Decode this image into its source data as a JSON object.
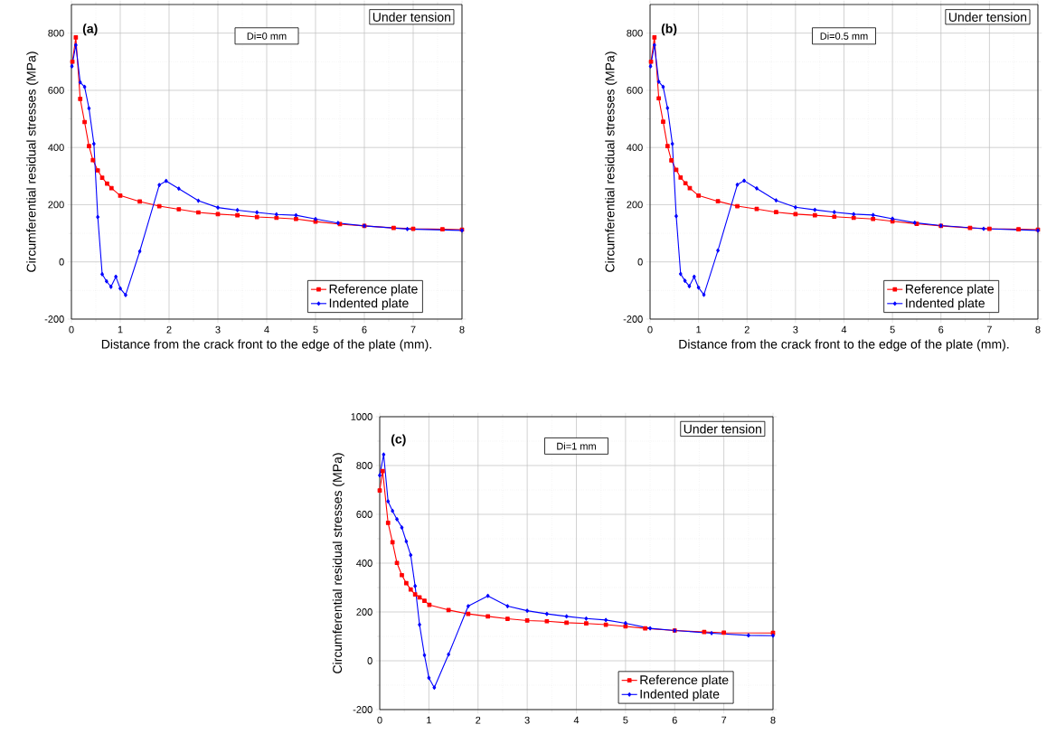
{
  "chart_data": [
    {
      "type": "line",
      "xlabel": "Distance from the crack front to the edge of the plate (mm).",
      "ylabel": "Circumferential residual stresses (MPa)",
      "annotations": [
        "(a)",
        "Under tension",
        "Di=0 mm"
      ],
      "xlim": [
        0,
        8
      ],
      "ylim": [
        -200,
        900
      ],
      "xticks": [
        0,
        1,
        2,
        3,
        4,
        5,
        6,
        7,
        8
      ],
      "yticks": [
        -200,
        0,
        200,
        400,
        600,
        800
      ],
      "grid": true,
      "legend": "bottom right",
      "line_style": "solid",
      "series": [
        {
          "name": "Reference plate",
          "color": "#ff0000",
          "marker": "square",
          "x": [
            0.02,
            0.09,
            0.18,
            0.27,
            0.36,
            0.44,
            0.54,
            0.63,
            0.73,
            0.82,
            1.0,
            1.4,
            1.8,
            2.2,
            2.6,
            3.0,
            3.4,
            3.8,
            4.2,
            4.6,
            5.0,
            5.5,
            6.0,
            6.6,
            7.0,
            7.6,
            8.0
          ],
          "values": [
            700,
            785,
            570,
            489,
            405,
            356,
            320,
            294,
            274,
            258,
            232,
            211,
            195,
            184,
            173,
            167,
            163,
            157,
            154,
            150,
            141,
            132,
            126,
            119,
            116,
            114,
            113
          ]
        },
        {
          "name": "Indented plate",
          "color": "#0000ff",
          "marker": "diamond",
          "x": [
            0.01,
            0.09,
            0.18,
            0.27,
            0.36,
            0.46,
            0.54,
            0.63,
            0.72,
            0.81,
            0.91,
            1.0,
            1.11,
            1.4,
            1.8,
            1.94,
            2.2,
            2.6,
            3.0,
            3.4,
            3.8,
            4.2,
            4.6,
            5.0,
            5.46,
            6.0,
            6.88,
            8.0
          ],
          "values": [
            684,
            758,
            628,
            612,
            537,
            413,
            157,
            -43,
            -68,
            -87,
            -52,
            -93,
            -116,
            37,
            269,
            283,
            256,
            214,
            190,
            181,
            173,
            166,
            163,
            150,
            136,
            126,
            115,
            110
          ]
        }
      ]
    },
    {
      "type": "line",
      "xlabel": "Distance from the crack front to the edge of the plate (mm).",
      "ylabel": "Circumferential residual stresses (MPa)",
      "annotations": [
        "(b)",
        "Under tension",
        "Di=0.5 mm"
      ],
      "xlim": [
        0,
        8
      ],
      "ylim": [
        -200,
        900
      ],
      "xticks": [
        0,
        1,
        2,
        3,
        4,
        5,
        6,
        7,
        8
      ],
      "yticks": [
        -200,
        0,
        200,
        400,
        600,
        800
      ],
      "grid": true,
      "legend": "bottom right",
      "line_style": "solid",
      "series": [
        {
          "name": "Reference plate",
          "color": "#ff0000",
          "marker": "square",
          "x": [
            0.02,
            0.09,
            0.18,
            0.27,
            0.36,
            0.44,
            0.54,
            0.63,
            0.73,
            0.82,
            1.0,
            1.4,
            1.8,
            2.2,
            2.6,
            3.0,
            3.4,
            3.8,
            4.2,
            4.6,
            5.0,
            5.5,
            6.0,
            6.6,
            7.0,
            7.6,
            8.0
          ],
          "values": [
            700,
            785,
            572,
            490,
            405,
            355,
            322,
            295,
            275,
            258,
            232,
            212,
            195,
            185,
            174,
            167,
            163,
            158,
            154,
            150,
            142,
            133,
            126,
            119,
            116,
            114,
            113
          ]
        },
        {
          "name": "Indented plate",
          "color": "#0000ff",
          "marker": "diamond",
          "x": [
            0.01,
            0.09,
            0.18,
            0.27,
            0.36,
            0.46,
            0.54,
            0.63,
            0.72,
            0.81,
            0.91,
            1.0,
            1.11,
            1.4,
            1.8,
            1.94,
            2.2,
            2.6,
            3.0,
            3.4,
            3.8,
            4.2,
            4.6,
            5.0,
            5.46,
            6.0,
            6.88,
            8.0
          ],
          "values": [
            684,
            758,
            630,
            612,
            538,
            413,
            160,
            -42,
            -66,
            -85,
            -52,
            -90,
            -115,
            40,
            270,
            284,
            257,
            215,
            191,
            182,
            174,
            167,
            164,
            151,
            137,
            127,
            116,
            110
          ]
        }
      ]
    },
    {
      "type": "line",
      "ylabel": "Circumferential residual stresses (MPa)",
      "annotations": [
        "(c)",
        "Under tension",
        "Di=1 mm"
      ],
      "xlim": [
        0,
        8
      ],
      "ylim": [
        -200,
        1000
      ],
      "xticks": [
        0,
        1,
        2,
        3,
        4,
        5,
        6,
        7,
        8
      ],
      "yticks": [
        -200,
        0,
        200,
        400,
        600,
        800,
        1000
      ],
      "grid": true,
      "legend": "bottom right",
      "line_style": "solid",
      "series": [
        {
          "name": "Reference plate",
          "color": "#ff0000",
          "marker": "square",
          "x": [
            0.0,
            0.06,
            0.17,
            0.26,
            0.35,
            0.45,
            0.54,
            0.63,
            0.72,
            0.81,
            0.91,
            1.01,
            1.4,
            1.8,
            2.2,
            2.6,
            3.0,
            3.4,
            3.8,
            4.2,
            4.6,
            5.0,
            5.4,
            6.0,
            6.6,
            7.0,
            8.0
          ],
          "values": [
            698,
            777,
            565,
            486,
            401,
            351,
            318,
            292,
            272,
            260,
            246,
            229,
            208,
            192,
            182,
            172,
            165,
            162,
            156,
            153,
            148,
            141,
            133,
            124,
            118,
            115,
            114
          ]
        },
        {
          "name": "Indented plate",
          "color": "#0000ff",
          "marker": "diamond",
          "x": [
            0.0,
            0.08,
            0.17,
            0.26,
            0.35,
            0.45,
            0.54,
            0.63,
            0.72,
            0.81,
            0.91,
            1.0,
            1.11,
            1.4,
            1.8,
            2.2,
            2.6,
            3.0,
            3.4,
            3.8,
            4.2,
            4.6,
            5.0,
            5.5,
            6.0,
            6.75,
            7.5,
            8.0
          ],
          "values": [
            760,
            845,
            653,
            614,
            580,
            546,
            489,
            433,
            306,
            148,
            23,
            -70,
            -110,
            26,
            224,
            266,
            224,
            205,
            192,
            182,
            173,
            167,
            154,
            133,
            124,
            113,
            104,
            103
          ]
        }
      ]
    }
  ]
}
